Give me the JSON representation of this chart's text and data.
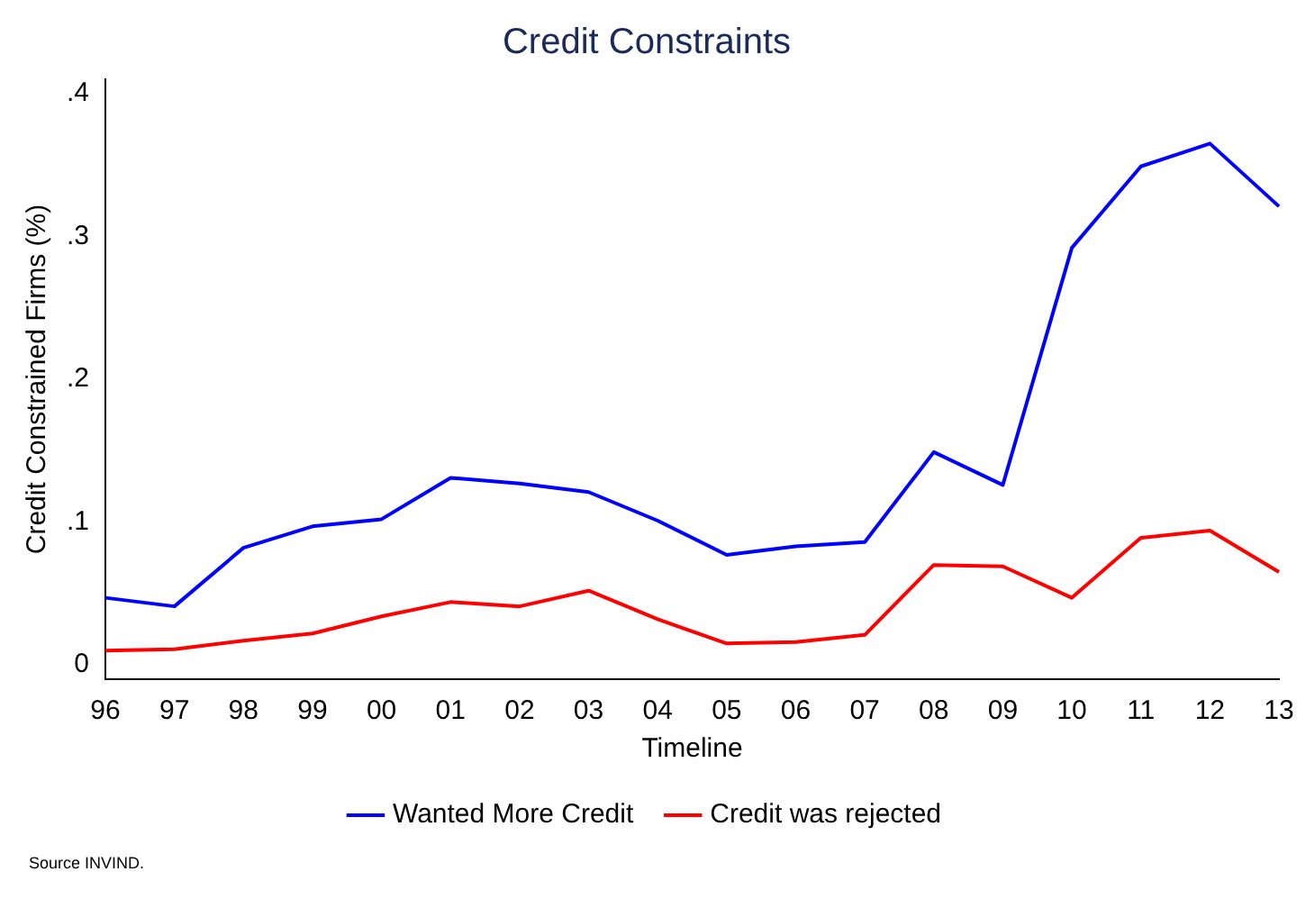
{
  "chart_data": {
    "type": "line",
    "title": "Credit Constraints",
    "xlabel": "Timeline",
    "ylabel": "Credit Constrained Firms (%)",
    "categories": [
      "96",
      "97",
      "98",
      "99",
      "00",
      "01",
      "02",
      "03",
      "04",
      "05",
      "06",
      "07",
      "08",
      "09",
      "10",
      "11",
      "12",
      "13"
    ],
    "series": [
      {
        "name": "Wanted More Credit",
        "color": "#0000ff",
        "values": [
          0.047,
          0.041,
          0.082,
          0.097,
          0.102,
          0.131,
          0.127,
          0.121,
          0.101,
          0.077,
          0.083,
          0.086,
          0.149,
          0.126,
          0.292,
          0.349,
          0.365,
          0.321
        ]
      },
      {
        "name": "Credit was rejected",
        "color": "#ff0000",
        "values": [
          0.01,
          0.011,
          0.017,
          0.022,
          0.034,
          0.044,
          0.041,
          0.052,
          0.032,
          0.015,
          0.016,
          0.021,
          0.07,
          0.069,
          0.047,
          0.089,
          0.094,
          0.065
        ]
      }
    ],
    "ylim": [
      -0.01,
      0.41
    ],
    "yticks": [
      0,
      {
        "value": 0.1,
        "label": ".1"
      },
      {
        "value": 0.2,
        "label": ".2"
      },
      {
        "value": 0.3,
        "label": ".3"
      },
      {
        "value": 0.4,
        "label": ".4"
      }
    ],
    "grid": false,
    "legend": "bottom",
    "marker": "none",
    "line_style": "solid",
    "annotations": [
      "Source INVIND."
    ]
  }
}
